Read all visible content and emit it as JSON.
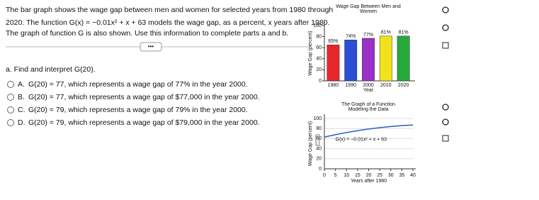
{
  "question": {
    "intro": [
      "The bar graph shows the wage gap between men and women for selected years from 1980 through",
      "2020. The function G(x) = −0.01x² + x + 63 models the wage gap, as a percent, x years after 1980.",
      "The graph of function G is also shown. Use this information to complete parts a and b."
    ],
    "more": "•••",
    "part_a": "a. Find and interpret G(20).",
    "options": [
      {
        "letter": "A.",
        "text": "G(20) = 77, which represents a wage gap of 77% in the year 2000."
      },
      {
        "letter": "B.",
        "text": "G(20) = 77, which represents a wage gap of $77,000 in the year 2000."
      },
      {
        "letter": "C.",
        "text": "G(20) = 79, which represents a wage gap of 79% in the year 2000."
      },
      {
        "letter": "D.",
        "text": "G(20) = 79, which represents a wage gap of $79,000 in the year 2000."
      }
    ]
  },
  "chart_data": [
    {
      "type": "bar",
      "title": [
        "Wage Gap Between Men and",
        "Women"
      ],
      "y_label": "Wage Gap (percent)",
      "x_label": "Year",
      "categories": [
        "1980",
        "1990",
        "2000",
        "2010",
        "2020"
      ],
      "values": [
        65,
        74,
        77,
        81,
        81
      ],
      "value_labels": [
        "65%",
        "74%",
        "77%",
        "81%",
        "81%"
      ],
      "colors": [
        "#e8262a",
        "#2a4fd6",
        "#9b30c8",
        "#f2e21c",
        "#27a83a"
      ],
      "ylim": [
        0,
        100
      ],
      "yticks": [
        0,
        20,
        40,
        60,
        80,
        100
      ]
    },
    {
      "type": "line",
      "title": [
        "The Graph of a Function",
        "Modeling the Data"
      ],
      "y_label": "Wage Gap (percent)",
      "x_label": "Years after 1980",
      "x": [
        0,
        5,
        10,
        15,
        20,
        25,
        30,
        35,
        40
      ],
      "values": [
        63,
        67.75,
        72,
        75.75,
        79,
        81.75,
        84,
        85.75,
        87
      ],
      "color": "#2a5fc0",
      "annotation": "G(x) = −0.01x² + x + 63",
      "xlim": [
        0,
        40
      ],
      "xticks": [
        0,
        5,
        10,
        15,
        20,
        25,
        30,
        35,
        40
      ],
      "ylim": [
        0,
        100
      ],
      "yticks": [
        0,
        20,
        40,
        60,
        80,
        100
      ],
      "grid": true
    }
  ]
}
